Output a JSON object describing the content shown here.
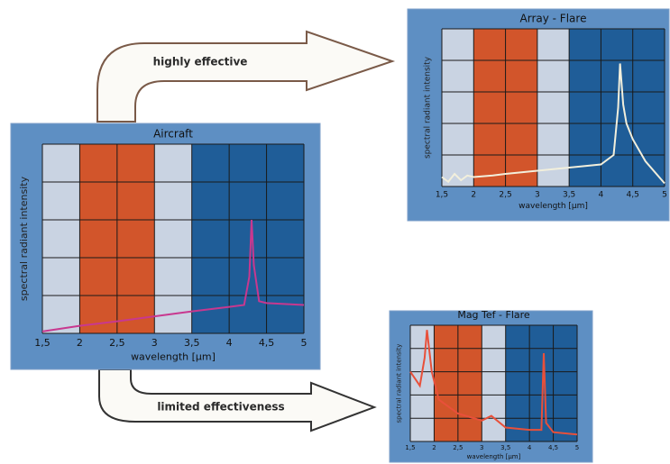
{
  "arrows": [
    "highly effective",
    "limited effectiveness"
  ],
  "chart_data": [
    {
      "type": "line",
      "title": "Aircraft",
      "xlabel": "wavelength [µm]",
      "ylabel": "spectral radiant intensity",
      "xlim": [
        1.5,
        5
      ],
      "ylim": [
        0,
        5
      ],
      "grid": true,
      "xticks": [
        {
          "value": 1.5,
          "label": "1,5"
        },
        2,
        {
          "value": 2.5,
          "label": "2,5"
        },
        3,
        {
          "value": 3.5,
          "label": "3,5"
        },
        4,
        {
          "value": 4.5,
          "label": "4,5"
        },
        5
      ],
      "yticks": [
        0,
        1,
        2,
        3,
        4,
        5
      ],
      "bands": [
        {
          "from": 1.5,
          "to": 2,
          "color": "#c9d3e2"
        },
        {
          "from": 2,
          "to": 3,
          "color": "#d2552b"
        },
        {
          "from": 3,
          "to": 3.5,
          "color": "#c9d3e2"
        },
        {
          "from": 3.5,
          "to": 5,
          "color": "#1f5d98"
        }
      ],
      "color": "#c8388f",
      "x": [
        1.5,
        2,
        2.5,
        3,
        3.5,
        4,
        4.2,
        4.27,
        4.3,
        4.33,
        4.4,
        4.5,
        5
      ],
      "values": [
        0.05,
        0.2,
        0.32,
        0.45,
        0.58,
        0.7,
        0.75,
        1.5,
        3.0,
        1.8,
        0.85,
        0.8,
        0.75
      ]
    },
    {
      "type": "line",
      "title": "Array - Flare",
      "xlabel": "wavelength [µm]",
      "ylabel": "spectral radiant intensity",
      "xlim": [
        1.5,
        5
      ],
      "ylim": [
        0,
        5
      ],
      "grid": true,
      "xticks": [
        {
          "value": 1.5,
          "label": "1,5"
        },
        2,
        {
          "value": 2.5,
          "label": "2,5"
        },
        3,
        {
          "value": 3.5,
          "label": "3,5"
        },
        4,
        {
          "value": 4.5,
          "label": "4,5"
        },
        5
      ],
      "yticks": [
        0,
        1,
        2,
        3,
        4,
        5
      ],
      "bands": [
        {
          "from": 1.5,
          "to": 2,
          "color": "#c9d3e2"
        },
        {
          "from": 2,
          "to": 3,
          "color": "#d2552b"
        },
        {
          "from": 3,
          "to": 3.5,
          "color": "#c9d3e2"
        },
        {
          "from": 3.5,
          "to": 5,
          "color": "#1f5d98"
        }
      ],
      "color": "#f2efdc",
      "x": [
        1.5,
        1.6,
        1.7,
        1.8,
        1.9,
        2,
        2.3,
        2.5,
        3,
        3.5,
        4,
        4.2,
        4.27,
        4.3,
        4.35,
        4.4,
        4.5,
        4.7,
        5
      ],
      "values": [
        0.3,
        0.15,
        0.4,
        0.2,
        0.35,
        0.3,
        0.35,
        0.4,
        0.5,
        0.6,
        0.7,
        1.0,
        2.5,
        3.9,
        2.6,
        2.0,
        1.5,
        0.8,
        0.1
      ]
    },
    {
      "type": "line",
      "title": "Mag Tef - Flare",
      "xlabel": "wavelength [µm]",
      "ylabel": "spectral radiant intensity",
      "xlim": [
        1.5,
        5
      ],
      "ylim": [
        0,
        5
      ],
      "grid": true,
      "xticks": [
        {
          "value": 1.5,
          "label": "1,5"
        },
        2,
        {
          "value": 2.5,
          "label": "2,5"
        },
        3,
        {
          "value": 3.5,
          "label": "3,5"
        },
        4,
        {
          "value": 4.5,
          "label": "4,5"
        },
        5
      ],
      "yticks": [
        0,
        1,
        2,
        3,
        4,
        5
      ],
      "bands": [
        {
          "from": 1.5,
          "to": 2,
          "color": "#c9d3e2"
        },
        {
          "from": 2,
          "to": 3,
          "color": "#d2552b"
        },
        {
          "from": 3,
          "to": 3.5,
          "color": "#c9d3e2"
        },
        {
          "from": 3.5,
          "to": 5,
          "color": "#1f5d98"
        }
      ],
      "color": "#e8503a",
      "x": [
        1.5,
        1.6,
        1.7,
        1.8,
        1.85,
        1.95,
        2.1,
        2.5,
        3,
        3.2,
        3.5,
        4,
        4.25,
        4.3,
        4.35,
        4.5,
        5
      ],
      "values": [
        3.0,
        2.7,
        2.4,
        3.6,
        4.8,
        3.0,
        1.8,
        1.2,
        0.9,
        1.1,
        0.6,
        0.5,
        0.5,
        3.8,
        0.8,
        0.4,
        0.3
      ]
    }
  ]
}
